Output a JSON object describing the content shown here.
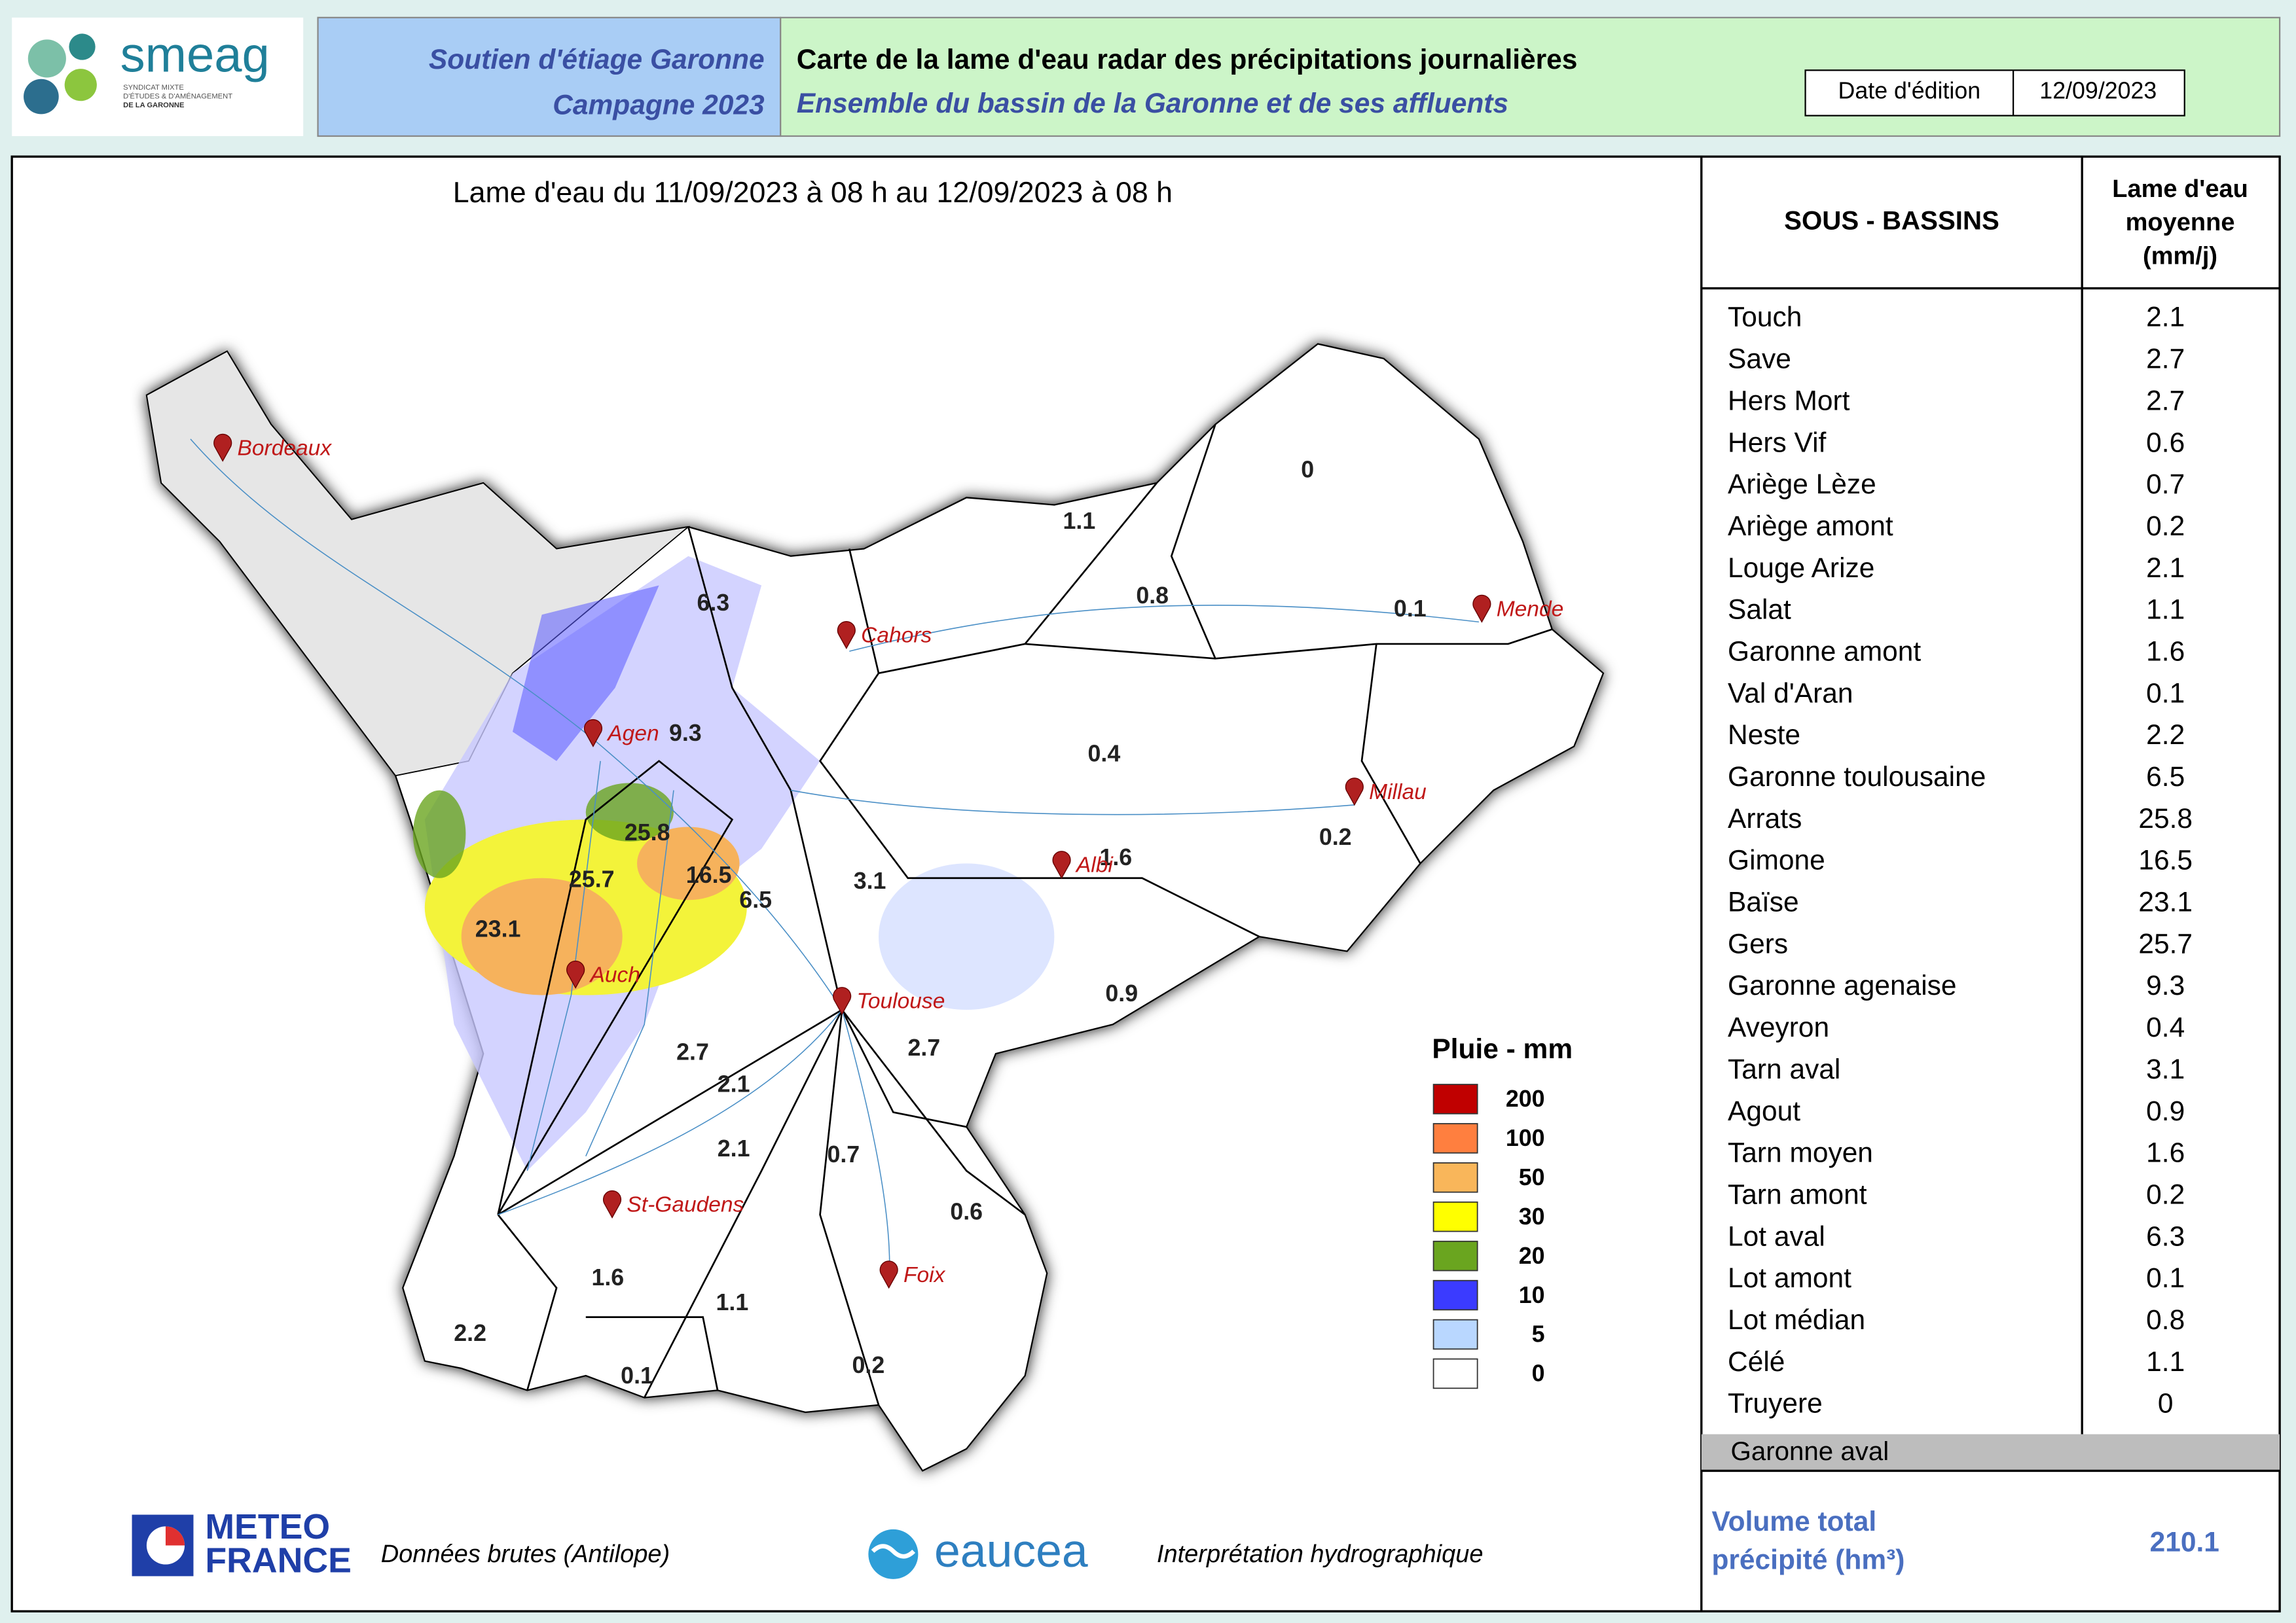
{
  "header": {
    "left_lines": [
      "Soutien d'étiage Garonne",
      "Campagne 2023"
    ],
    "title": "Carte de la lame d'eau radar des précipitations journalières",
    "subtitle": "Ensemble du bassin de la Garonne et de ses affluents",
    "date_label": "Date d'édition",
    "date": "12/09/2023"
  },
  "logo": {
    "name": "smeag",
    "tagline": [
      "SYNDICAT MIXTE",
      "D'ÉTUDES & D'AMÉNAGEMENT",
      "DE LA GARONNE"
    ]
  },
  "map": {
    "title": "Lame d'eau du 11/09/2023  à 08 h au  12/09/2023  à 08 h",
    "cities": [
      "Bordeaux",
      "Cahors",
      "Mende",
      "Agen",
      "Millau",
      "Albi",
      "Auch",
      "Toulouse",
      "St-Gaudens",
      "Foix"
    ],
    "basin_values": [
      0,
      1.1,
      0.8,
      0.1,
      6.3,
      9.3,
      0.4,
      0.2,
      25.8,
      25.7,
      16.5,
      23.1,
      6.5,
      3.1,
      1.6,
      0.9,
      2.7,
      2.7,
      2.1,
      2.1,
      0.7,
      0.6,
      1.6,
      1.1,
      2.2,
      0.1,
      0.2
    ],
    "legend": {
      "title": "Pluie - mm",
      "items": [
        {
          "label": 200,
          "color": "#c00000"
        },
        {
          "label": 100,
          "color": "#ff7f3f"
        },
        {
          "label": 50,
          "color": "#f9b65a"
        },
        {
          "label": 30,
          "color": "#ffff00"
        },
        {
          "label": 20,
          "color": "#6aa51f"
        },
        {
          "label": 10,
          "color": "#3b3bff"
        },
        {
          "label": 5,
          "color": "#b9d7ff"
        },
        {
          "label": 0,
          "color": "#ffffff"
        }
      ]
    }
  },
  "table": {
    "header_name": "SOUS - BASSINS",
    "header_value": [
      "Lame d'eau",
      "moyenne",
      "(mm/j)"
    ],
    "rows": [
      [
        "Touch",
        2.1
      ],
      [
        "Save",
        2.7
      ],
      [
        "Hers Mort",
        2.7
      ],
      [
        "Hers Vif",
        0.6
      ],
      [
        "Ariège Lèze",
        0.7
      ],
      [
        "Ariège amont",
        0.2
      ],
      [
        "Louge Arize",
        2.1
      ],
      [
        "Salat",
        1.1
      ],
      [
        "Garonne amont",
        1.6
      ],
      [
        "Val d'Aran",
        0.1
      ],
      [
        "Neste",
        2.2
      ],
      [
        "Garonne toulousaine",
        6.5
      ],
      [
        "Arrats",
        25.8
      ],
      [
        "Gimone",
        16.5
      ],
      [
        "Baïse",
        23.1
      ],
      [
        "Gers",
        25.7
      ],
      [
        "Garonne agenaise",
        9.3
      ],
      [
        "Aveyron",
        0.4
      ],
      [
        "Tarn aval",
        3.1
      ],
      [
        "Agout",
        0.9
      ],
      [
        "Tarn moyen",
        1.6
      ],
      [
        "Tarn amont",
        0.2
      ],
      [
        "Lot aval",
        6.3
      ],
      [
        "Lot amont",
        0.1
      ],
      [
        "Lot médian",
        0.8
      ],
      [
        "Célé",
        1.1
      ],
      [
        "Truyere",
        0
      ]
    ],
    "footer_row": "Garonne aval",
    "total_label": [
      "Volume total",
      "précipité (hm³)"
    ],
    "total": 210.1
  },
  "footer": {
    "meteo": [
      "METEO",
      "FRANCE"
    ],
    "meteo_caption": "Données brutes (Antilope)",
    "eaucea": "eaucea",
    "eaucea_caption": "Interprétation hydrographique"
  }
}
